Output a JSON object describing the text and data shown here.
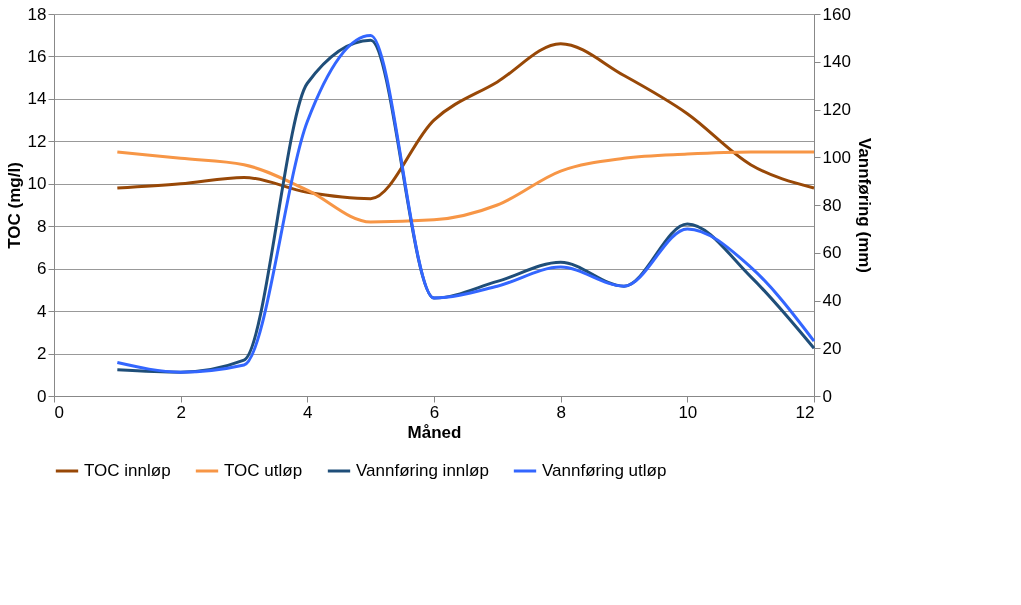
{
  "chart_data": {
    "type": "line",
    "xlabel": "Måned",
    "ylabel": "TOC (mg/l)",
    "y2label": "Vannføring (mm)",
    "x": [
      1,
      2,
      3,
      4,
      5,
      6,
      7,
      8,
      9,
      10,
      11,
      12
    ],
    "series": [
      {
        "name": "TOC innløp",
        "color": "#984807",
        "values": [
          9.8,
          10.0,
          10.3,
          9.6,
          9.3,
          13.0,
          14.8,
          16.6,
          15.1,
          13.3,
          10.9,
          9.8
        ]
      },
      {
        "name": "TOC utløp",
        "color": "#f79646",
        "values": [
          11.5,
          11.2,
          10.9,
          9.7,
          8.2,
          8.3,
          9.0,
          10.6,
          11.2,
          11.4,
          11.5,
          11.5
        ]
      },
      {
        "name": "Vannføring innløp",
        "color": "#1f4e79",
        "axis": "y2",
        "values": [
          11,
          10,
          15,
          131,
          149,
          41,
          48,
          56,
          46,
          72,
          50,
          20
        ]
      },
      {
        "name": "Vannføring utløp",
        "color": "#3366ff",
        "axis": "y2",
        "values": [
          14,
          10,
          13,
          115,
          151,
          41,
          46,
          54,
          46,
          70,
          54,
          23
        ]
      }
    ],
    "xlim": [
      0,
      12
    ],
    "xticks": [
      0,
      2,
      4,
      6,
      8,
      10,
      12
    ],
    "ylim": [
      0,
      18
    ],
    "yticks": [
      0,
      2,
      4,
      6,
      8,
      10,
      12,
      14,
      16,
      18
    ],
    "y2lim": [
      0,
      160
    ],
    "y2ticks": [
      0,
      20,
      40,
      60,
      80,
      100,
      120,
      140,
      160
    ],
    "grid": "y",
    "legend": "bottom",
    "line_style": "solid",
    "marker": "none"
  }
}
